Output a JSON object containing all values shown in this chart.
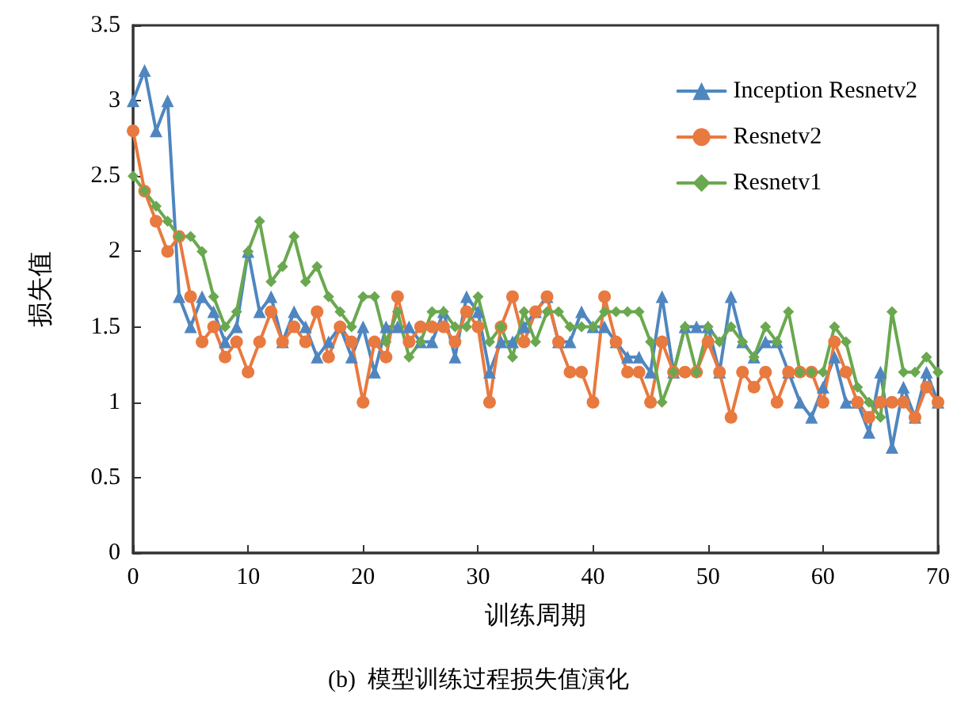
{
  "chart_data": {
    "type": "line",
    "title": "(b)  模型训练过程损失值演化",
    "xlabel": "训练周期",
    "ylabel": "损失值",
    "x": [
      0,
      1,
      2,
      3,
      4,
      5,
      6,
      7,
      8,
      9,
      10,
      11,
      12,
      13,
      14,
      15,
      16,
      17,
      18,
      19,
      20,
      21,
      22,
      23,
      24,
      25,
      26,
      27,
      28,
      29,
      30,
      31,
      32,
      33,
      34,
      35,
      36,
      37,
      38,
      39,
      40,
      41,
      42,
      43,
      44,
      45,
      46,
      47,
      48,
      49,
      50,
      51,
      52,
      53,
      54,
      55,
      56,
      57,
      58,
      59,
      60,
      61,
      62,
      63,
      64,
      65,
      66,
      67,
      68,
      69,
      70
    ],
    "series": [
      {
        "name": "Inception Resnetv2",
        "color": "#4f86c0",
        "marker": "triangle",
        "values": [
          3.0,
          3.2,
          2.8,
          3.0,
          1.7,
          1.5,
          1.7,
          1.6,
          1.4,
          1.5,
          2.0,
          1.6,
          1.7,
          1.4,
          1.6,
          1.5,
          1.3,
          1.4,
          1.5,
          1.3,
          1.5,
          1.2,
          1.5,
          1.5,
          1.5,
          1.4,
          1.4,
          1.6,
          1.3,
          1.7,
          1.6,
          1.2,
          1.4,
          1.4,
          1.5,
          1.6,
          1.7,
          1.4,
          1.4,
          1.6,
          1.5,
          1.5,
          1.4,
          1.3,
          1.3,
          1.2,
          1.7,
          1.2,
          1.5,
          1.5,
          1.5,
          1.2,
          1.7,
          1.4,
          1.3,
          1.4,
          1.4,
          1.2,
          1.0,
          0.9,
          1.1,
          1.3,
          1.0,
          1.0,
          0.8,
          1.2,
          0.7,
          1.1,
          0.9,
          1.2,
          1.0
        ]
      },
      {
        "name": "Resnetv2",
        "color": "#e8793f",
        "marker": "circle",
        "values": [
          2.8,
          2.4,
          2.2,
          2.0,
          2.1,
          1.7,
          1.4,
          1.5,
          1.3,
          1.4,
          1.2,
          1.4,
          1.6,
          1.4,
          1.5,
          1.4,
          1.6,
          1.3,
          1.5,
          1.4,
          1.0,
          1.4,
          1.3,
          1.7,
          1.4,
          1.5,
          1.5,
          1.5,
          1.4,
          1.6,
          1.5,
          1.0,
          1.5,
          1.7,
          1.4,
          1.6,
          1.7,
          1.4,
          1.2,
          1.2,
          1.0,
          1.7,
          1.4,
          1.2,
          1.2,
          1.0,
          1.4,
          1.2,
          1.2,
          1.2,
          1.4,
          1.2,
          0.9,
          1.2,
          1.1,
          1.2,
          1.0,
          1.2,
          1.2,
          1.2,
          1.0,
          1.4,
          1.2,
          1.0,
          0.9,
          1.0,
          1.0,
          1.0,
          0.9,
          1.1,
          1.0
        ]
      },
      {
        "name": "Resnetv1",
        "color": "#6aa84f",
        "marker": "diamond",
        "values": [
          2.5,
          2.4,
          2.3,
          2.2,
          2.1,
          2.1,
          2.0,
          1.7,
          1.5,
          1.6,
          2.0,
          2.2,
          1.8,
          1.9,
          2.1,
          1.8,
          1.9,
          1.7,
          1.6,
          1.5,
          1.7,
          1.7,
          1.4,
          1.6,
          1.3,
          1.4,
          1.6,
          1.6,
          1.5,
          1.5,
          1.7,
          1.4,
          1.5,
          1.3,
          1.6,
          1.4,
          1.6,
          1.6,
          1.5,
          1.5,
          1.5,
          1.6,
          1.6,
          1.6,
          1.6,
          1.4,
          1.0,
          1.2,
          1.5,
          1.2,
          1.5,
          1.4,
          1.5,
          1.4,
          1.3,
          1.5,
          1.4,
          1.6,
          1.2,
          1.2,
          1.2,
          1.5,
          1.4,
          1.1,
          1.0,
          0.9,
          1.6,
          1.2,
          1.2,
          1.3,
          1.2
        ]
      }
    ],
    "xlim": [
      0,
      70
    ],
    "xticks": [
      0,
      10,
      20,
      30,
      40,
      50,
      60,
      70
    ],
    "ylim": [
      0,
      3.5
    ],
    "yticks": [
      0,
      0.5,
      1,
      1.5,
      2,
      2.5,
      3,
      3.5
    ],
    "grid": false,
    "legend": "top right",
    "line_style": "solid"
  }
}
